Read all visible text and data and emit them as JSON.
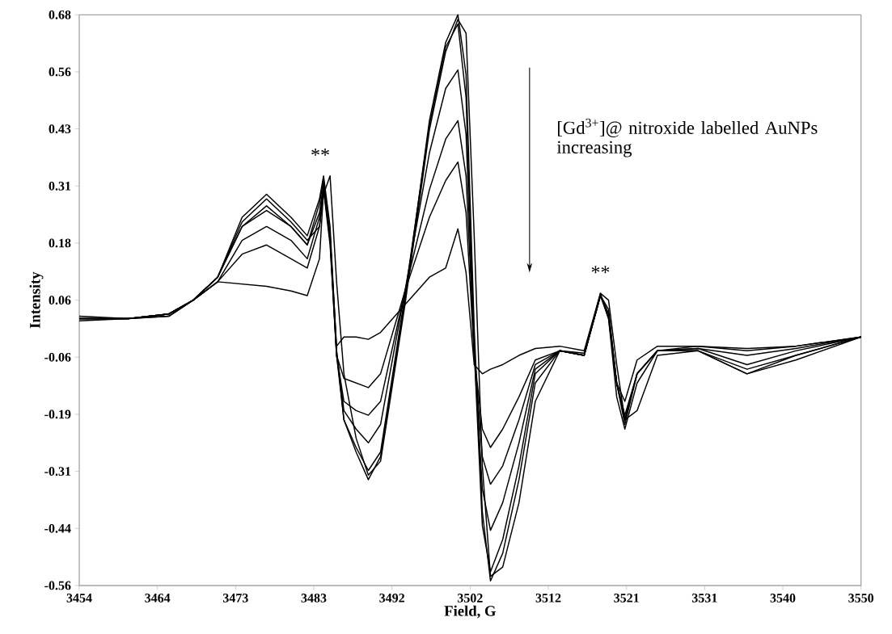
{
  "chart_data": {
    "type": "line",
    "xlabel": "Field, G",
    "ylabel": "Intensity",
    "x": [
      3454,
      3460,
      3465,
      3468,
      3471,
      3474,
      3477,
      3480,
      3482,
      3483.5,
      3484,
      3484.8,
      3485.6,
      3486.5,
      3488,
      3489.5,
      3491,
      3494,
      3497,
      3499,
      3500.5,
      3501.5,
      3502.5,
      3503.5,
      3504.5,
      3506,
      3508,
      3510,
      3513,
      3516,
      3518,
      3519,
      3520,
      3521,
      3522.5,
      3525,
      3530,
      3536,
      3542,
      3550
    ],
    "series": [
      {
        "color": "#000000",
        "values": [
          0.02,
          0.02,
          0.025,
          0.06,
          0.11,
          0.24,
          0.29,
          0.24,
          0.2,
          0.28,
          0.33,
          0.22,
          -0.05,
          -0.2,
          -0.27,
          -0.33,
          -0.28,
          0.06,
          0.45,
          0.62,
          0.68,
          0.55,
          0.0,
          -0.4,
          -0.55,
          -0.49,
          -0.33,
          -0.12,
          -0.05,
          -0.06,
          0.07,
          0.02,
          -0.15,
          -0.22,
          -0.12,
          -0.05,
          -0.05,
          -0.1,
          -0.07,
          -0.02
        ]
      },
      {
        "color": "#000000",
        "values": [
          0.025,
          0.02,
          0.03,
          0.06,
          0.11,
          0.23,
          0.28,
          0.23,
          0.19,
          0.22,
          0.29,
          0.33,
          0.1,
          -0.1,
          -0.24,
          -0.32,
          -0.29,
          0.05,
          0.43,
          0.6,
          0.67,
          0.64,
          0.2,
          -0.3,
          -0.54,
          -0.52,
          -0.38,
          -0.16,
          -0.05,
          -0.06,
          0.075,
          0.06,
          -0.08,
          -0.2,
          -0.18,
          -0.06,
          -0.05,
          -0.09,
          -0.06,
          -0.02
        ]
      },
      {
        "color": "#000000",
        "values": [
          0.015,
          0.02,
          0.025,
          0.06,
          0.11,
          0.22,
          0.265,
          0.22,
          0.18,
          0.27,
          0.32,
          0.2,
          -0.06,
          -0.2,
          -0.26,
          -0.31,
          -0.27,
          0.07,
          0.44,
          0.61,
          0.66,
          0.5,
          -0.05,
          -0.43,
          -0.53,
          -0.46,
          -0.3,
          -0.1,
          -0.05,
          -0.055,
          0.07,
          0.04,
          -0.12,
          -0.21,
          -0.1,
          -0.05,
          -0.05,
          -0.1,
          -0.06,
          -0.02
        ]
      },
      {
        "color": "#000000",
        "values": [
          0.02,
          0.02,
          0.03,
          0.06,
          0.11,
          0.22,
          0.255,
          0.22,
          0.18,
          0.25,
          0.31,
          0.2,
          -0.05,
          -0.18,
          -0.22,
          -0.25,
          -0.21,
          0.08,
          0.38,
          0.52,
          0.56,
          0.42,
          -0.05,
          -0.35,
          -0.44,
          -0.38,
          -0.25,
          -0.09,
          -0.05,
          -0.06,
          0.07,
          0.03,
          -0.12,
          -0.2,
          -0.1,
          -0.05,
          -0.045,
          -0.08,
          -0.05,
          -0.02
        ]
      },
      {
        "color": "#000000",
        "values": [
          0.02,
          0.02,
          0.03,
          0.06,
          0.1,
          0.19,
          0.22,
          0.19,
          0.15,
          0.24,
          0.31,
          0.19,
          -0.06,
          -0.16,
          -0.18,
          -0.19,
          -0.16,
          0.08,
          0.3,
          0.41,
          0.45,
          0.33,
          -0.05,
          -0.28,
          -0.34,
          -0.3,
          -0.2,
          -0.08,
          -0.05,
          -0.06,
          0.07,
          0.03,
          -0.12,
          -0.2,
          -0.1,
          -0.05,
          -0.045,
          -0.06,
          -0.045,
          -0.02
        ]
      },
      {
        "color": "#000000",
        "values": [
          0.02,
          0.02,
          0.03,
          0.06,
          0.1,
          0.16,
          0.18,
          0.15,
          0.13,
          0.22,
          0.3,
          0.18,
          -0.06,
          -0.11,
          -0.12,
          -0.13,
          -0.1,
          0.08,
          0.24,
          0.32,
          0.36,
          0.25,
          -0.06,
          -0.22,
          -0.26,
          -0.22,
          -0.15,
          -0.07,
          -0.05,
          -0.06,
          0.07,
          0.03,
          -0.12,
          -0.19,
          -0.1,
          -0.05,
          -0.04,
          -0.05,
          -0.04,
          -0.02
        ]
      },
      {
        "color": "#000000",
        "values": [
          0.02,
          0.02,
          0.03,
          0.06,
          0.1,
          0.095,
          0.09,
          0.08,
          0.07,
          0.15,
          0.3,
          0.2,
          -0.04,
          -0.02,
          -0.02,
          -0.025,
          -0.01,
          0.05,
          0.11,
          0.13,
          0.215,
          0.12,
          -0.08,
          -0.1,
          -0.09,
          -0.08,
          -0.06,
          -0.045,
          -0.04,
          -0.05,
          0.075,
          0.02,
          -0.12,
          -0.16,
          -0.07,
          -0.04,
          -0.04,
          -0.045,
          -0.04,
          -0.02
        ]
      }
    ],
    "xlim": [
      3454,
      3550
    ],
    "xticks": [
      3454,
      {
        "value": 3463.6,
        "label": "3464"
      },
      {
        "value": 3473.2,
        "label": "3473"
      },
      {
        "value": 3482.8,
        "label": "3483"
      },
      {
        "value": 3492.4,
        "label": "3492"
      },
      3502,
      {
        "value": 3511.6,
        "label": "3512"
      },
      {
        "value": 3521.2,
        "label": "3521"
      },
      {
        "value": 3530.8,
        "label": "3531"
      },
      {
        "value": 3540.4,
        "label": "3540"
      },
      3550
    ],
    "ylim": [
      -0.56,
      0.68
    ],
    "yticks": [
      -0.56,
      {
        "value": -0.436,
        "label": "-0.44"
      },
      {
        "value": -0.312,
        "label": "-0.31"
      },
      {
        "value": -0.188,
        "label": "-0.19"
      },
      {
        "value": -0.064,
        "label": "-0.06"
      },
      0.06,
      {
        "value": 0.184,
        "label": "0.18"
      },
      {
        "value": 0.308,
        "label": "0.31"
      },
      {
        "value": 0.432,
        "label": "0.43"
      },
      {
        "value": 0.556,
        "label": "0.56"
      },
      0.68
    ],
    "annotations": [
      {
        "text": "**",
        "x": 3483.6,
        "y": 0.33
      },
      {
        "text": "**",
        "x": 3518,
        "y": 0.075
      },
      "[Gd$^{3+}$]@ nitroxide labelled AuNPs increasing"
    ],
    "grid": false,
    "marker": "none",
    "line_style": "solid"
  }
}
